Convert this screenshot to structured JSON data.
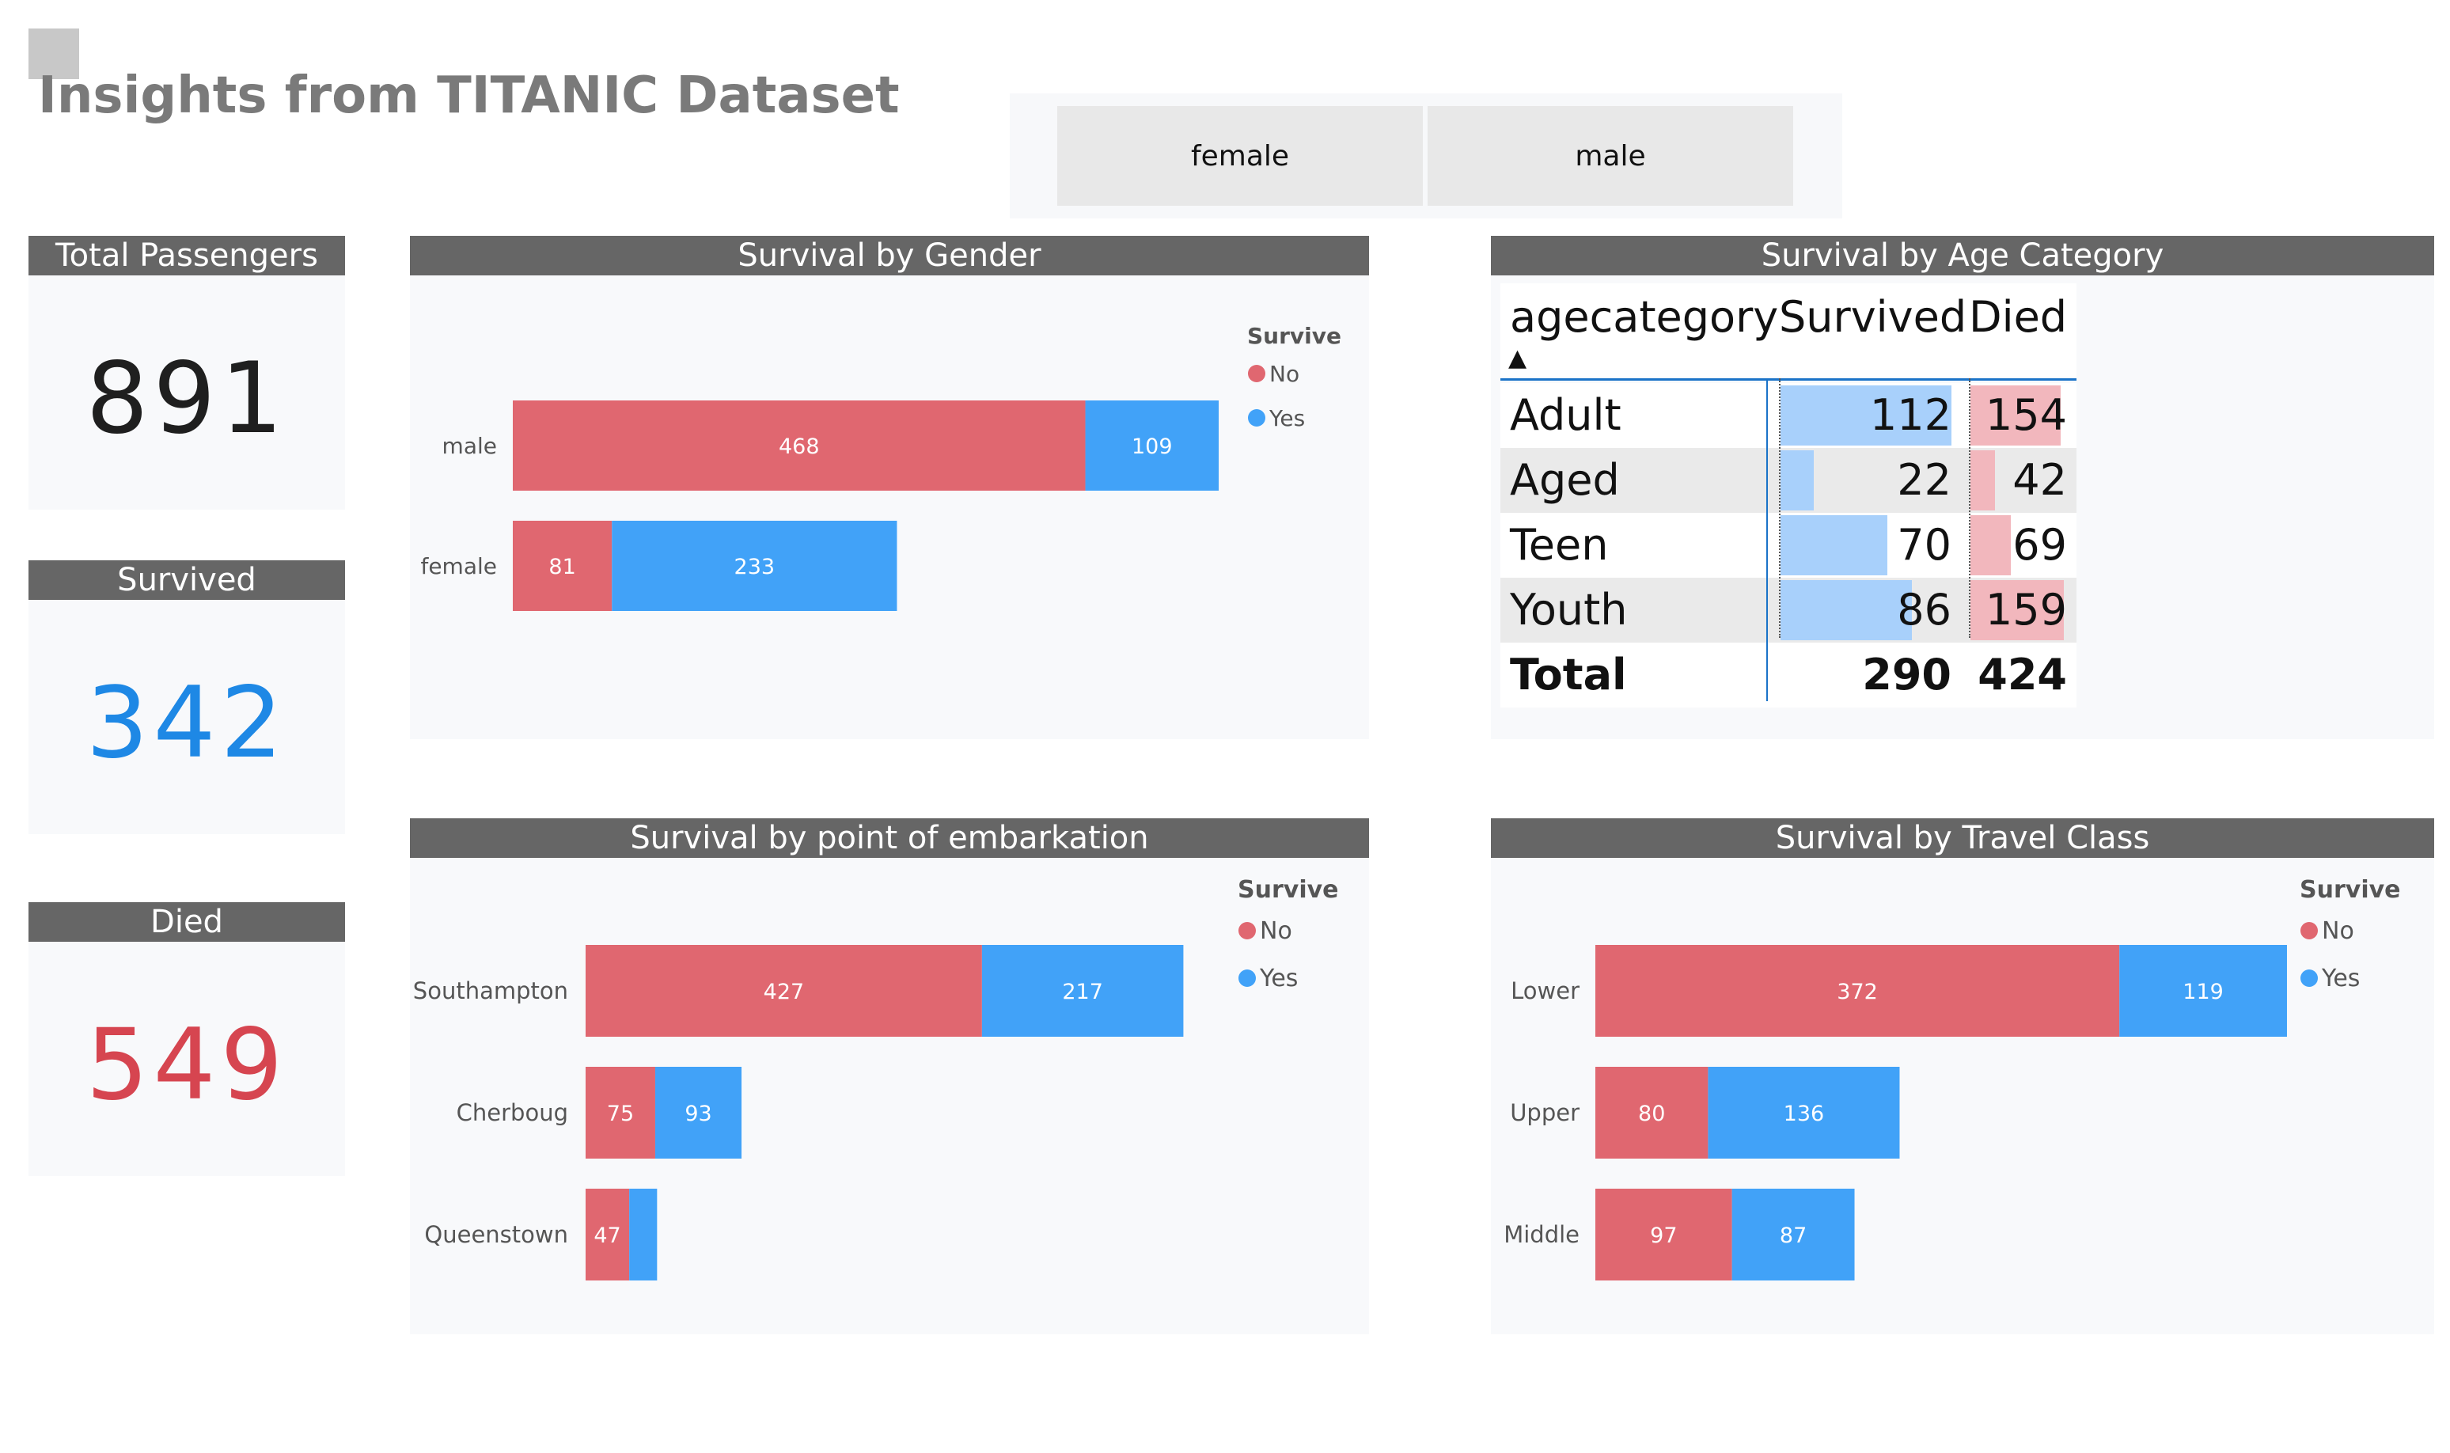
{
  "page": {
    "title": "Insights from TITANIC Dataset"
  },
  "slicer": {
    "options": [
      "female",
      "male"
    ]
  },
  "kpis": [
    {
      "label": "Total Passengers",
      "value": "891",
      "color": "#1f1f1f"
    },
    {
      "label": "Survived",
      "value": "342",
      "color": "#1e88e5"
    },
    {
      "label": "Died",
      "value": "549",
      "color": "#d64550"
    }
  ],
  "colors": {
    "no": "#e06770",
    "yes": "#41a2f8",
    "header": "#666666",
    "survived_bar": "#a8d0fb",
    "died_bar": "#f2b7bd"
  },
  "chart_data": [
    {
      "id": "gender",
      "type": "bar",
      "stacked": true,
      "orientation": "horizontal",
      "title": "Survival by Gender",
      "legend": {
        "title": "Survive",
        "entries": [
          "No",
          "Yes"
        ],
        "position": "top-right"
      },
      "categories": [
        "male",
        "female"
      ],
      "series": [
        {
          "name": "No",
          "values": [
            468,
            81
          ]
        },
        {
          "name": "Yes",
          "values": [
            109,
            233
          ]
        }
      ]
    },
    {
      "id": "embark",
      "type": "bar",
      "stacked": true,
      "orientation": "horizontal",
      "title": "Survival by point of embarkation",
      "legend": {
        "title": "Survive",
        "entries": [
          "No",
          "Yes"
        ],
        "position": "top-right"
      },
      "categories": [
        "Southampton",
        "Cherboug",
        "Queenstown"
      ],
      "series": [
        {
          "name": "No",
          "values": [
            427,
            75,
            47
          ]
        },
        {
          "name": "Yes",
          "values": [
            217,
            93,
            30
          ]
        }
      ],
      "value_labels_hidden": [
        [
          false,
          false,
          false
        ],
        [
          false,
          false,
          true
        ]
      ]
    },
    {
      "id": "class",
      "type": "bar",
      "stacked": true,
      "orientation": "horizontal",
      "title": "Survival by Travel Class",
      "legend": {
        "title": "Survive",
        "entries": [
          "No",
          "Yes"
        ],
        "position": "top-right"
      },
      "categories": [
        "Lower",
        "Upper",
        "Middle"
      ],
      "series": [
        {
          "name": "No",
          "values": [
            372,
            80,
            97
          ]
        },
        {
          "name": "Yes",
          "values": [
            119,
            136,
            87
          ]
        }
      ]
    },
    {
      "id": "age",
      "type": "table",
      "title": "Survival by Age Category",
      "columns": [
        "agecategory",
        "Survived",
        "Died"
      ],
      "sort_indicator": "▲",
      "rows": [
        {
          "category": "Adult",
          "survived": 112,
          "died": 154
        },
        {
          "category": "Aged",
          "survived": 22,
          "died": 42
        },
        {
          "category": "Teen",
          "survived": 70,
          "died": 69
        },
        {
          "category": "Youth",
          "survived": 86,
          "died": 159
        }
      ],
      "total": {
        "label": "Total",
        "survived": 290,
        "died": 424
      }
    }
  ]
}
